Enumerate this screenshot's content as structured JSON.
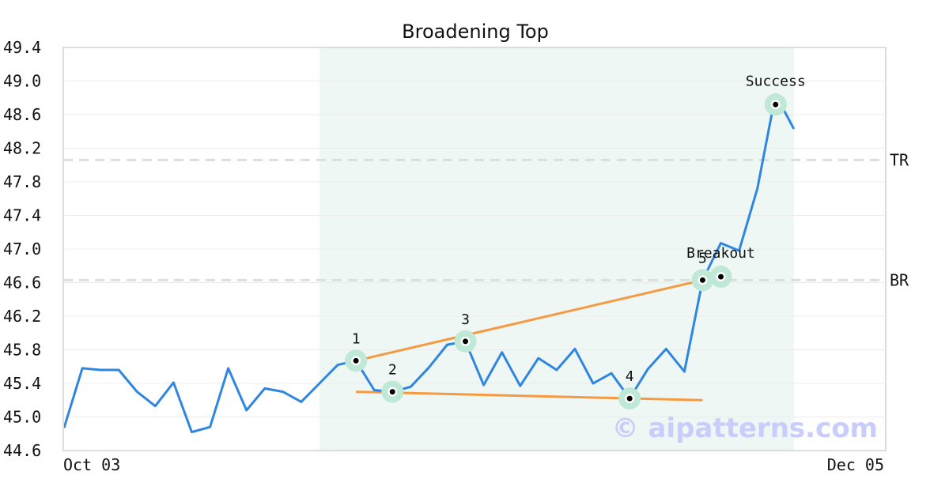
{
  "chart_data": {
    "type": "line",
    "title": "Broadening Top",
    "watermark": "© aipatterns.com",
    "ylim": [
      44.6,
      49.4
    ],
    "yticks": [
      "44.6",
      "45.0",
      "45.4",
      "45.8",
      "46.2",
      "46.6",
      "47.0",
      "47.4",
      "47.8",
      "48.2",
      "48.6",
      "49.0",
      "49.4"
    ],
    "xtick_labels": [
      "Oct 03",
      "Dec 05"
    ],
    "grid": "horizontal",
    "colors": {
      "price_line": "#2f86e0",
      "trend_line": "#f59a42",
      "pattern_zone": "#eef7f3",
      "marker_halo": "#bfe8d6",
      "level_line": "#dddddd",
      "watermark": "#c9cdfb"
    },
    "series": [
      {
        "values": [
          44.87,
          45.58,
          45.56,
          45.56,
          45.3,
          45.13,
          45.41,
          44.82,
          44.88,
          45.58,
          45.08,
          45.34,
          45.3,
          45.18,
          45.4,
          45.62,
          45.67,
          45.32,
          45.3,
          45.36,
          45.59,
          45.86,
          45.9,
          45.38,
          45.77,
          45.37,
          45.7,
          45.56,
          45.81,
          45.4,
          45.52,
          45.22,
          45.57,
          45.81,
          45.54,
          46.63,
          47.07,
          46.98,
          47.72,
          48.84,
          48.43
        ]
      }
    ],
    "pivots": [
      {
        "label": "1",
        "index": 16,
        "value": 45.67
      },
      {
        "label": "2",
        "index": 18,
        "value": 45.3
      },
      {
        "label": "3",
        "index": 22,
        "value": 45.9
      },
      {
        "label": "4",
        "index": 31,
        "value": 45.22
      },
      {
        "label": "5",
        "index": 35,
        "value": 46.63
      }
    ],
    "events": [
      {
        "label": "Breakout",
        "index": 36,
        "value": 46.67
      },
      {
        "label": "Success",
        "index": 39,
        "value": 48.72
      }
    ],
    "pattern_zone": {
      "start_index": 14,
      "end_index": 40
    },
    "trend_lines": [
      {
        "from_index": 16,
        "from_value": 45.67,
        "to_index": 35,
        "to_value": 46.63
      },
      {
        "from_index": 16,
        "from_value": 45.3,
        "to_index": 35,
        "to_value": 45.2
      }
    ],
    "levels": [
      {
        "label": "TR",
        "value": 48.06
      },
      {
        "label": "BR",
        "value": 46.63
      }
    ]
  }
}
